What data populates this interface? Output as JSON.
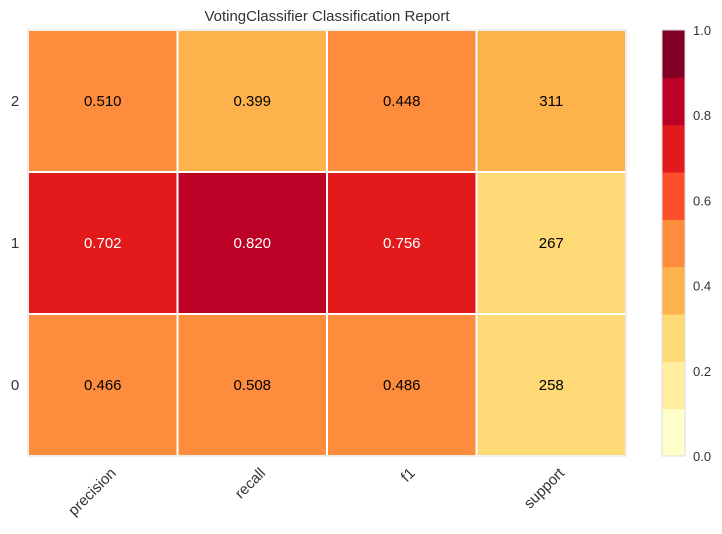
{
  "chart_data": {
    "type": "heatmap",
    "title": "VotingClassifier Classification Report",
    "columns": [
      "precision",
      "recall",
      "f1",
      "support"
    ],
    "rows": [
      "2",
      "1",
      "0"
    ],
    "values": [
      [
        0.51,
        0.399,
        0.448,
        311
      ],
      [
        0.702,
        0.82,
        0.756,
        267
      ],
      [
        0.466,
        0.508,
        0.486,
        258
      ]
    ],
    "cell_labels": [
      [
        "0.510",
        "0.399",
        "0.448",
        "311"
      ],
      [
        "0.702",
        "0.820",
        "0.756",
        "267"
      ],
      [
        "0.466",
        "0.508",
        "0.486",
        "258"
      ]
    ],
    "cell_colors": [
      [
        "#fd8d3c",
        "#feb24c",
        "#fd8d3c",
        "#feb24c"
      ],
      [
        "#e31a1c",
        "#bd0026",
        "#e31a1c",
        "#fed976"
      ],
      [
        "#fd8d3c",
        "#fd8d3c",
        "#fd8d3c",
        "#fed976"
      ]
    ],
    "cell_text_colors": [
      [
        "#000000",
        "#000000",
        "#000000",
        "#000000"
      ],
      [
        "#ffffff",
        "#ffffff",
        "#ffffff",
        "#000000"
      ],
      [
        "#000000",
        "#000000",
        "#000000",
        "#000000"
      ]
    ],
    "colorbar": {
      "range": [
        0.0,
        1.0
      ],
      "ticks": [
        "0.0",
        "0.2",
        "0.4",
        "0.6",
        "0.8",
        "1.0"
      ],
      "tick_values": [
        0.0,
        0.2,
        0.4,
        0.6,
        0.8,
        1.0
      ],
      "colors": [
        "#ffffcc",
        "#ffeda0",
        "#fed976",
        "#feb24c",
        "#fd8d3c",
        "#fc4e2a",
        "#e31a1c",
        "#bd0026",
        "#800026"
      ]
    },
    "grid": true
  }
}
